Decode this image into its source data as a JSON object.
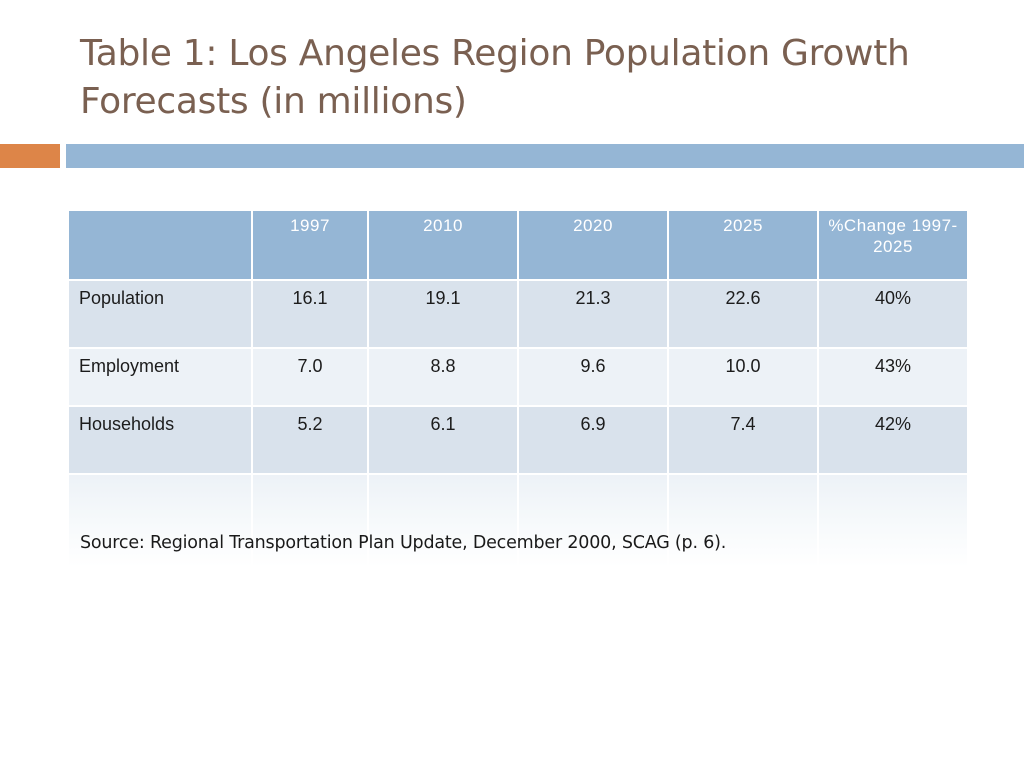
{
  "slide": {
    "title": "Table 1: Los Angeles Region Population Growth Forecasts (in millions)",
    "source": "Source:  Regional Transportation Plan Update, December 2000, SCAG (p. 6)."
  },
  "table": {
    "headers": [
      "",
      "1997",
      "2010",
      "2020",
      "2025",
      "%Change 1997-2025"
    ],
    "rows": [
      [
        "Population",
        "16.1",
        "19.1",
        "21.3",
        "22.6",
        "40%"
      ],
      [
        "Employment",
        "7.0",
        "8.8",
        "9.6",
        "10.0",
        "43%"
      ],
      [
        "Households",
        "5.2",
        "6.1",
        "6.9",
        "7.4",
        "42%"
      ]
    ]
  },
  "colors": {
    "title": "#7a6051",
    "accent_orange": "#dd8548",
    "accent_blue": "#95b6d5",
    "header_fill": "#95b6d5",
    "row_dark": "#d9e2ec",
    "row_light": "#edf2f7"
  }
}
